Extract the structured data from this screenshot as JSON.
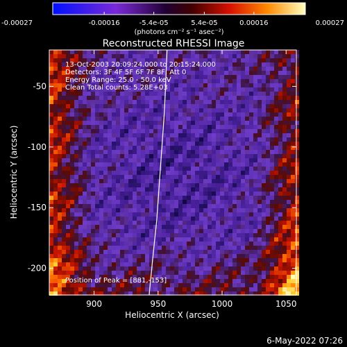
{
  "chart_data": {
    "type": "heatmap",
    "title": "Reconstructed RHESSI Image",
    "xlabel": "Heliocentric X (arcsec)",
    "ylabel": "Heliocentric Y (arcsec)",
    "xlim": [
      865,
      1058
    ],
    "ylim": [
      -222,
      -20
    ],
    "x_ticks": [
      900,
      950,
      1000,
      1050
    ],
    "x_tick_labels": [
      "900",
      "950",
      "1000",
      "1050"
    ],
    "y_ticks": [
      -50,
      -100,
      -150,
      -200
    ],
    "y_tick_labels": [
      "-50",
      "-100",
      "-150",
      "-200"
    ],
    "colorbar": {
      "min": -0.00027,
      "max": 0.00027,
      "ticks": [
        -0.00027,
        -0.00016,
        -5.4e-05,
        5.4e-05,
        0.00016,
        0.00027
      ],
      "tick_labels": [
        "-0.00027",
        "-0.00016",
        "-5.4e-05",
        "5.4e-05",
        "0.00016",
        "0.00027"
      ],
      "unit_label": "(photons cm⁻² s⁻¹ asec⁻²)"
    },
    "annotations": {
      "time_range": "13-Oct-2003 20:09:24.000 to 20:15:24.000",
      "detectors": "Detectors: 3F 4F 5F 6F 7F 8F, Att 0",
      "energy": "Energy Range: 25.0 - 50.0 keV",
      "clean": "Clean     Total counts: 5.28E+03",
      "peak": "Position of Peak = [881,-153]"
    },
    "limb_curve": {
      "x": [
        943,
        946,
        949,
        951,
        953,
        955,
        956,
        957
      ],
      "y": [
        -222,
        -190,
        -160,
        -130,
        -100,
        -70,
        -45,
        -20
      ]
    },
    "peak_position": [
      881,
      -153
    ],
    "footer_date": "6-May-2022 07:26"
  }
}
